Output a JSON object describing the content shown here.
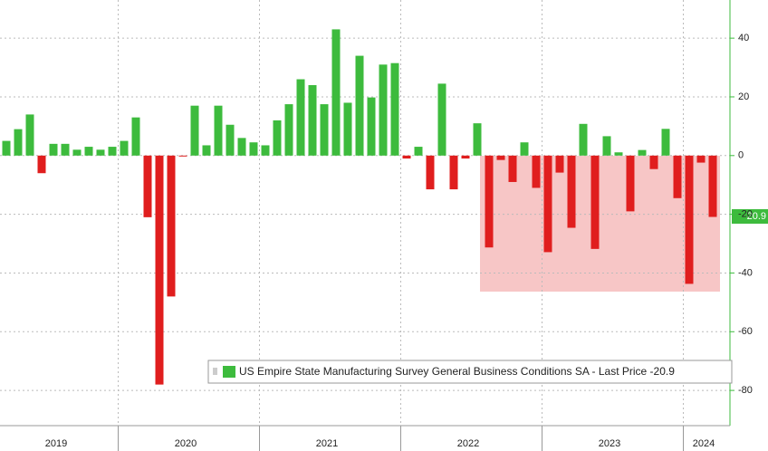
{
  "chart_data": {
    "type": "bar",
    "legend": "US Empire State Manufacturing Survey General Business Conditions SA - Last Price -20.9",
    "last_value": -20.9,
    "categories": [
      null,
      null,
      null,
      null,
      "2019",
      null,
      null,
      null,
      null,
      null,
      null,
      null,
      null,
      null,
      null,
      "2020",
      null,
      null,
      null,
      null,
      null,
      null,
      null,
      null,
      null,
      null,
      null,
      "2021",
      null,
      null,
      null,
      null,
      null,
      null,
      null,
      null,
      null,
      null,
      null,
      "2022",
      null,
      null,
      null,
      null,
      null,
      null,
      null,
      null,
      null,
      null,
      null,
      "2023",
      null,
      null,
      null,
      null,
      null,
      null,
      null,
      "2024",
      null
    ],
    "values": [
      5,
      9,
      14,
      -6,
      4,
      4,
      2,
      3,
      2,
      3,
      5,
      13,
      -21,
      -78,
      -48,
      -0.2,
      17,
      3.5,
      17,
      10.5,
      6,
      4.5,
      3.5,
      12,
      17.5,
      26,
      24,
      17.5,
      43,
      18,
      34,
      19.8,
      31,
      31.5,
      -1,
      3,
      -11.5,
      24.5,
      -11.5,
      -1,
      11,
      -31.3,
      -1.5,
      -9,
      4.5,
      -11,
      -32.9,
      -5.8,
      -24.6,
      10.8,
      -31.8,
      6.6,
      1.1,
      -19,
      1.9,
      -4.6,
      9.1,
      -14.5,
      -43.7,
      -2.4,
      -20.9
    ],
    "positive_color": "#3dbb3d",
    "negative_color": "#e01e1e",
    "ylim": [
      -92,
      53
    ],
    "yticks": [
      40,
      20,
      0,
      -20,
      -40,
      -60,
      -80
    ],
    "grid": true
  }
}
